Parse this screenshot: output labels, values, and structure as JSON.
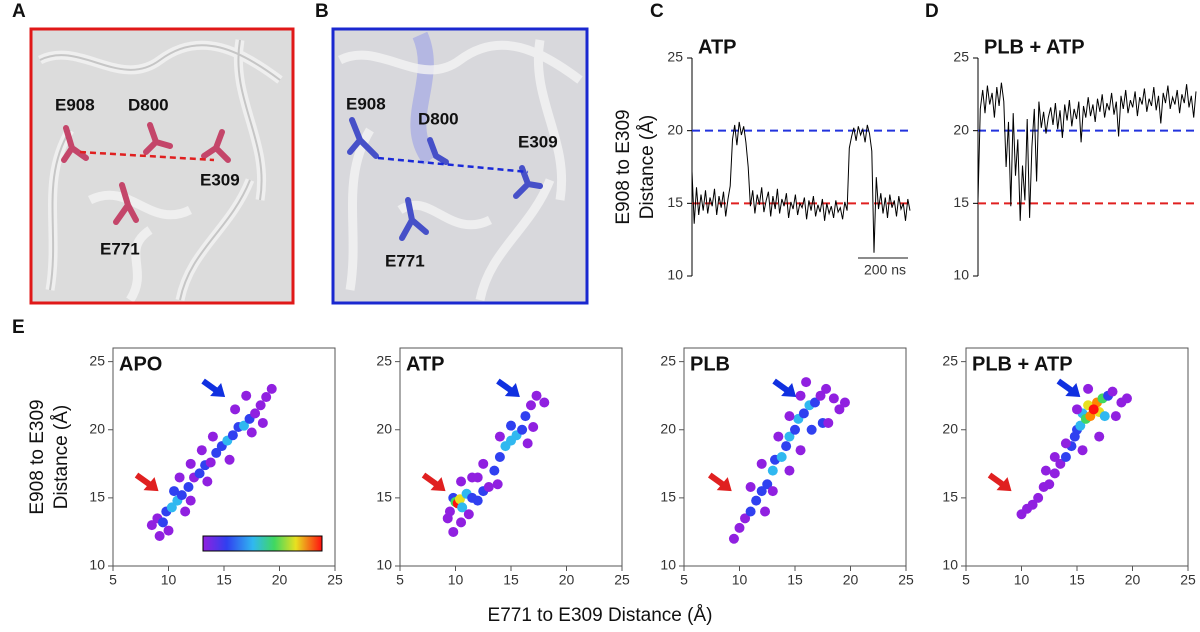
{
  "figure": {
    "panel_labels": [
      "A",
      "B",
      "C",
      "D",
      "E"
    ],
    "structure_panels": [
      {
        "residues": [
          "E908",
          "D800",
          "E309",
          "E771"
        ]
      },
      {
        "residues": [
          "E908",
          "D800",
          "E309",
          "E771"
        ]
      }
    ],
    "e_xlabel": "E771 to E309 Distance (Å)"
  },
  "chart_data": [
    {
      "type": "line",
      "title": "ATP",
      "ylabel": [
        "E908 to E309",
        "Distance (Å)"
      ],
      "ylim": [
        10,
        25
      ],
      "yticks": [
        10,
        15,
        20,
        25
      ],
      "color": "#000000",
      "scale_bar": "200 ns",
      "reference_lines": [
        {
          "value": 20,
          "color": "#2233dd"
        },
        {
          "value": 15,
          "color": "#e02020"
        }
      ],
      "values": [
        17.2,
        13.6,
        16.1,
        14.2,
        15.6,
        14.5,
        15.9,
        14.3,
        15.4,
        14.8,
        16.0,
        14.2,
        15.5,
        14.7,
        15.8,
        14.1,
        15.3,
        16.2,
        19.4,
        20.4,
        19.0,
        20.6,
        19.7,
        20.3,
        19.2,
        17.5,
        14.8,
        15.9,
        14.3,
        15.6,
        14.9,
        16.1,
        14.4,
        15.2,
        15.8,
        14.1,
        15.5,
        14.6,
        16.0,
        14.3,
        15.3,
        14.8,
        15.7,
        14.0,
        15.1,
        14.6,
        15.6,
        14.2,
        15.0,
        14.7,
        15.4,
        13.9,
        15.2,
        14.5,
        15.5,
        14.1,
        14.9,
        14.4,
        15.3,
        13.8,
        15.0,
        14.3,
        14.8,
        14.0,
        15.2,
        14.4,
        14.7,
        13.9,
        15.1,
        14.5,
        18.8,
        19.6,
        20.2,
        19.3,
        20.3,
        19.7,
        20.1,
        19.2,
        20.4,
        19.8,
        18.6,
        11.6,
        16.8,
        14.6,
        15.7,
        14.3,
        15.4,
        14.0,
        15.6,
        14.7,
        15.2,
        14.1,
        15.5,
        14.6,
        15.0,
        13.8,
        15.3,
        14.5
      ]
    },
    {
      "type": "line",
      "title": "PLB + ATP",
      "ylim": [
        10,
        25
      ],
      "yticks": [
        10,
        15,
        20,
        25
      ],
      "color": "#000000",
      "reference_lines": [
        {
          "value": 20,
          "color": "#2233dd"
        },
        {
          "value": 15,
          "color": "#e02020"
        }
      ],
      "values": [
        15.2,
        21.5,
        22.8,
        21.2,
        23.1,
        21.8,
        22.6,
        20.9,
        23.0,
        21.7,
        23.3,
        22.0,
        17.5,
        20.6,
        14.8,
        21.2,
        16.9,
        19.4,
        13.8,
        17.6,
        15.2,
        20.8,
        14.0,
        18.9,
        21.5,
        16.5,
        22.0,
        20.2,
        21.3,
        19.8,
        20.9,
        21.6,
        20.4,
        21.9,
        20.1,
        21.4,
        19.5,
        21.8,
        20.7,
        22.1,
        20.3,
        21.5,
        20.8,
        22.0,
        19.2,
        21.7,
        20.9,
        22.3,
        21.0,
        21.8,
        20.6,
        22.2,
        21.3,
        22.5,
        20.9,
        21.9,
        21.4,
        22.6,
        21.1,
        22.0,
        19.6,
        22.4,
        21.5,
        22.8,
        21.2,
        22.1,
        21.6,
        22.7,
        21.0,
        22.3,
        21.8,
        22.9,
        21.3,
        22.2,
        21.7,
        23.0,
        21.4,
        22.4,
        20.5,
        22.6,
        21.9,
        23.1,
        21.5,
        22.3,
        21.8,
        22.8,
        21.2,
        22.5,
        21.9,
        23.2,
        21.6,
        22.4,
        20.9,
        22.7
      ]
    },
    {
      "type": "scatter",
      "title": "APO",
      "ylabel": [
        "E908 to E309",
        "Distance (Å)"
      ],
      "xlim": [
        5,
        25
      ],
      "ylim": [
        10,
        26
      ],
      "xticks": [
        5,
        10,
        15,
        20,
        25
      ],
      "yticks": [
        10,
        15,
        20,
        25
      ],
      "colorbar": true,
      "x": [
        8.5,
        9,
        9.5,
        9.8,
        10.3,
        10.8,
        11.2,
        10.5,
        11.8,
        12.3,
        12.8,
        13.3,
        13.8,
        14.3,
        14.8,
        15.3,
        15.8,
        16.3,
        16.8,
        17.3,
        17.8,
        18.3,
        18.8,
        19.3,
        14,
        13,
        12,
        16,
        17,
        11,
        10,
        12,
        13.5,
        15.5,
        17.5,
        9.2,
        18.5,
        11.5
      ],
      "y": [
        13.0,
        13.5,
        13.2,
        14,
        14.3,
        14.8,
        15.2,
        15.5,
        15.8,
        16.5,
        16.8,
        17.4,
        17.6,
        18.3,
        18.8,
        19.2,
        19.6,
        20.2,
        20.3,
        20.8,
        21.2,
        21.8,
        22.4,
        23,
        19.5,
        18.5,
        17.5,
        21.5,
        22.5,
        16.5,
        12.6,
        14.8,
        16.2,
        17.8,
        19.8,
        12.2,
        20.5,
        14
      ],
      "point_colors": [
        "#9020e0",
        "#9020e0",
        "#3040f0",
        "#3040f0",
        "#30b8f0",
        "#30b8f0",
        "#3040f0",
        "#3040f0",
        "#3040f0",
        "#9020e0",
        "#3040f0",
        "#3040f0",
        "#9020e0",
        "#3040f0",
        "#3040f0",
        "#30b8f0",
        "#3040f0",
        "#3040f0",
        "#30b8f0",
        "#3040f0",
        "#9020e0",
        "#9020e0",
        "#9020e0",
        "#9020e0",
        "#9020e0",
        "#9020e0",
        "#9020e0",
        "#9020e0",
        "#9020e0",
        "#9020e0",
        "#9020e0",
        "#9020e0",
        "#9020e0",
        "#9020e0",
        "#9020e0",
        "#9020e0",
        "#9020e0",
        "#9020e0"
      ],
      "annotations": [
        {
          "x": 9.1,
          "y": 15.5,
          "color": "#e02020"
        },
        {
          "x": 15.1,
          "y": 22.4,
          "color": "#1030e0"
        }
      ]
    },
    {
      "type": "scatter",
      "title": "ATP",
      "xlim": [
        5,
        25
      ],
      "ylim": [
        10,
        26
      ],
      "xticks": [
        5,
        10,
        15,
        20,
        25
      ],
      "yticks": [
        10,
        15,
        20,
        25
      ],
      "x": [
        9.5,
        9.8,
        10,
        10.2,
        10.4,
        10.6,
        11,
        11.5,
        12,
        12.5,
        11.2,
        10.5,
        9.8,
        10.5,
        12,
        13,
        13.5,
        14,
        14.5,
        15,
        15.5,
        16,
        15,
        16.3,
        16.8,
        17.3,
        14,
        13.8,
        16.5,
        17,
        12.5,
        11.5,
        18,
        9.3
      ],
      "y": [
        14,
        15,
        14.7,
        14.6,
        14.9,
        14.3,
        15.3,
        15,
        14.8,
        15.5,
        13.8,
        13.2,
        12.5,
        16.2,
        16.5,
        15.8,
        17,
        18,
        18.8,
        19.2,
        19.6,
        20,
        20.3,
        21,
        21.8,
        22.5,
        19.5,
        16,
        19,
        20.2,
        17.5,
        16.5,
        22,
        13.5
      ],
      "point_colors": [
        "#9020e0",
        "#3040f0",
        "#40d860",
        "#ff1010",
        "#e8e020",
        "#30b8f0",
        "#30b8f0",
        "#3040f0",
        "#3040f0",
        "#3040f0",
        "#9020e0",
        "#9020e0",
        "#9020e0",
        "#9020e0",
        "#9020e0",
        "#9020e0",
        "#3040f0",
        "#3040f0",
        "#30b8f0",
        "#30b8f0",
        "#30b8f0",
        "#3040f0",
        "#3040f0",
        "#3040f0",
        "#9020e0",
        "#9020e0",
        "#9020e0",
        "#9020e0",
        "#9020e0",
        "#9020e0",
        "#9020e0",
        "#9020e0",
        "#9020e0",
        "#9020e0"
      ],
      "annotations": [
        {
          "x": 9.1,
          "y": 15.5,
          "color": "#e02020"
        },
        {
          "x": 15.8,
          "y": 22.4,
          "color": "#1030e0"
        }
      ]
    },
    {
      "type": "scatter",
      "title": "PLB",
      "xlim": [
        5,
        25
      ],
      "ylim": [
        10,
        26
      ],
      "xticks": [
        5,
        10,
        15,
        20,
        25
      ],
      "yticks": [
        10,
        15,
        20,
        25
      ],
      "x": [
        10,
        10.5,
        11,
        11.5,
        12,
        12.5,
        13,
        13.2,
        13.8,
        14.2,
        14.5,
        15,
        15.3,
        15.8,
        16.3,
        16.8,
        17.3,
        17.8,
        18.5,
        19,
        19.5,
        17.5,
        16.5,
        15.5,
        14.5,
        13,
        12,
        13.5,
        14.5,
        15.5,
        11,
        16,
        18,
        9.5,
        12.3
      ],
      "y": [
        12.8,
        13.5,
        14,
        14.8,
        15.5,
        16,
        17,
        17.8,
        18,
        18.8,
        19.5,
        20,
        20.8,
        21.2,
        21.8,
        22,
        22.5,
        23,
        22.3,
        21.5,
        22,
        20.5,
        20,
        18.5,
        17,
        15.5,
        17.5,
        19.5,
        21,
        22.5,
        15.8,
        23.5,
        20.5,
        12,
        14
      ],
      "point_colors": [
        "#9020e0",
        "#9020e0",
        "#3040f0",
        "#3040f0",
        "#3040f0",
        "#3040f0",
        "#30b8f0",
        "#3040f0",
        "#30b8f0",
        "#3040f0",
        "#30b8f0",
        "#3040f0",
        "#30b8f0",
        "#3040f0",
        "#30b8f0",
        "#3040f0",
        "#9020e0",
        "#9020e0",
        "#9020e0",
        "#9020e0",
        "#9020e0",
        "#3040f0",
        "#3040f0",
        "#9020e0",
        "#9020e0",
        "#9020e0",
        "#9020e0",
        "#9020e0",
        "#9020e0",
        "#9020e0",
        "#9020e0",
        "#9020e0",
        "#9020e0",
        "#9020e0",
        "#9020e0"
      ],
      "annotations": [
        {
          "x": 9.3,
          "y": 15.5,
          "color": "#e02020"
        },
        {
          "x": 15.1,
          "y": 22.4,
          "color": "#1030e0"
        }
      ]
    },
    {
      "type": "scatter",
      "title": "PLB + ATP",
      "xlim": [
        5,
        25
      ],
      "ylim": [
        10,
        26
      ],
      "xticks": [
        5,
        10,
        15,
        20,
        25
      ],
      "yticks": [
        10,
        15,
        20,
        25
      ],
      "x": [
        10,
        10.5,
        11,
        11.5,
        12,
        12.5,
        13,
        13.5,
        14,
        14.5,
        14.8,
        15,
        15.3,
        15.5,
        15.8,
        16,
        16.2,
        16.8,
        17,
        17.3,
        17.5,
        17.8,
        18.2,
        14,
        15,
        16,
        18.5,
        19,
        19.5,
        13,
        12.2,
        17,
        15.5,
        16.5
      ],
      "y": [
        13.8,
        14.2,
        14.5,
        15,
        15.8,
        16,
        16.8,
        17.5,
        18,
        18.8,
        19.5,
        20,
        20.3,
        21.2,
        20.8,
        21.8,
        21,
        22,
        21.3,
        22.3,
        21,
        22.5,
        22.8,
        19,
        21.5,
        23,
        21,
        22,
        22.3,
        18,
        17,
        19.5,
        18.5,
        21.5
      ],
      "point_colors": [
        "#9020e0",
        "#9020e0",
        "#9020e0",
        "#9020e0",
        "#9020e0",
        "#9020e0",
        "#9020e0",
        "#9020e0",
        "#3040f0",
        "#3040f0",
        "#3040f0",
        "#3040f0",
        "#30b8f0",
        "#30b8f0",
        "#40d860",
        "#e8e020",
        "#ff8800",
        "#ff8800",
        "#e8e020",
        "#40d860",
        "#30b8f0",
        "#3040f0",
        "#9020e0",
        "#9020e0",
        "#9020e0",
        "#9020e0",
        "#9020e0",
        "#9020e0",
        "#9020e0",
        "#9020e0",
        "#9020e0",
        "#9020e0",
        "#9020e0",
        "#ff1010"
      ],
      "annotations": [
        {
          "x": 9.1,
          "y": 15.5,
          "color": "#e02020"
        },
        {
          "x": 15.3,
          "y": 22.4,
          "color": "#1030e0"
        }
      ]
    }
  ]
}
